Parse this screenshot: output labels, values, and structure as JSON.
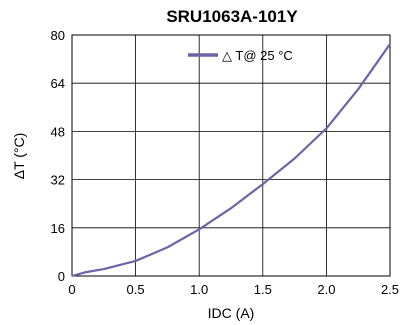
{
  "chart_data": {
    "type": "line",
    "title": "SRU1063A-101Y",
    "xlabel": "IDC (A)",
    "ylabel": "ΔT  (°C)",
    "xlim": [
      0,
      2.5
    ],
    "ylim": [
      0,
      80
    ],
    "xticks": [
      0,
      0.5,
      1.0,
      1.5,
      2.0,
      2.5
    ],
    "xtick_labels": [
      "0",
      "0.5",
      "1.0",
      "1.5",
      "2.0",
      "2.5"
    ],
    "yticks": [
      0,
      16,
      32,
      48,
      64,
      80
    ],
    "ytick_labels": [
      "0",
      "16",
      "32",
      "48",
      "64",
      "80"
    ],
    "grid": true,
    "legend_position": "top-center",
    "color": "#6b64a8",
    "series": [
      {
        "name": "△  T@ 25 °C",
        "x": [
          0,
          0.1,
          0.25,
          0.5,
          0.75,
          1.0,
          1.25,
          1.5,
          1.75,
          2.0,
          2.25,
          2.5
        ],
        "y": [
          0,
          1.2,
          2.3,
          5,
          9.5,
          15.5,
          22.5,
          30.5,
          39,
          49,
          62,
          77
        ]
      }
    ]
  }
}
